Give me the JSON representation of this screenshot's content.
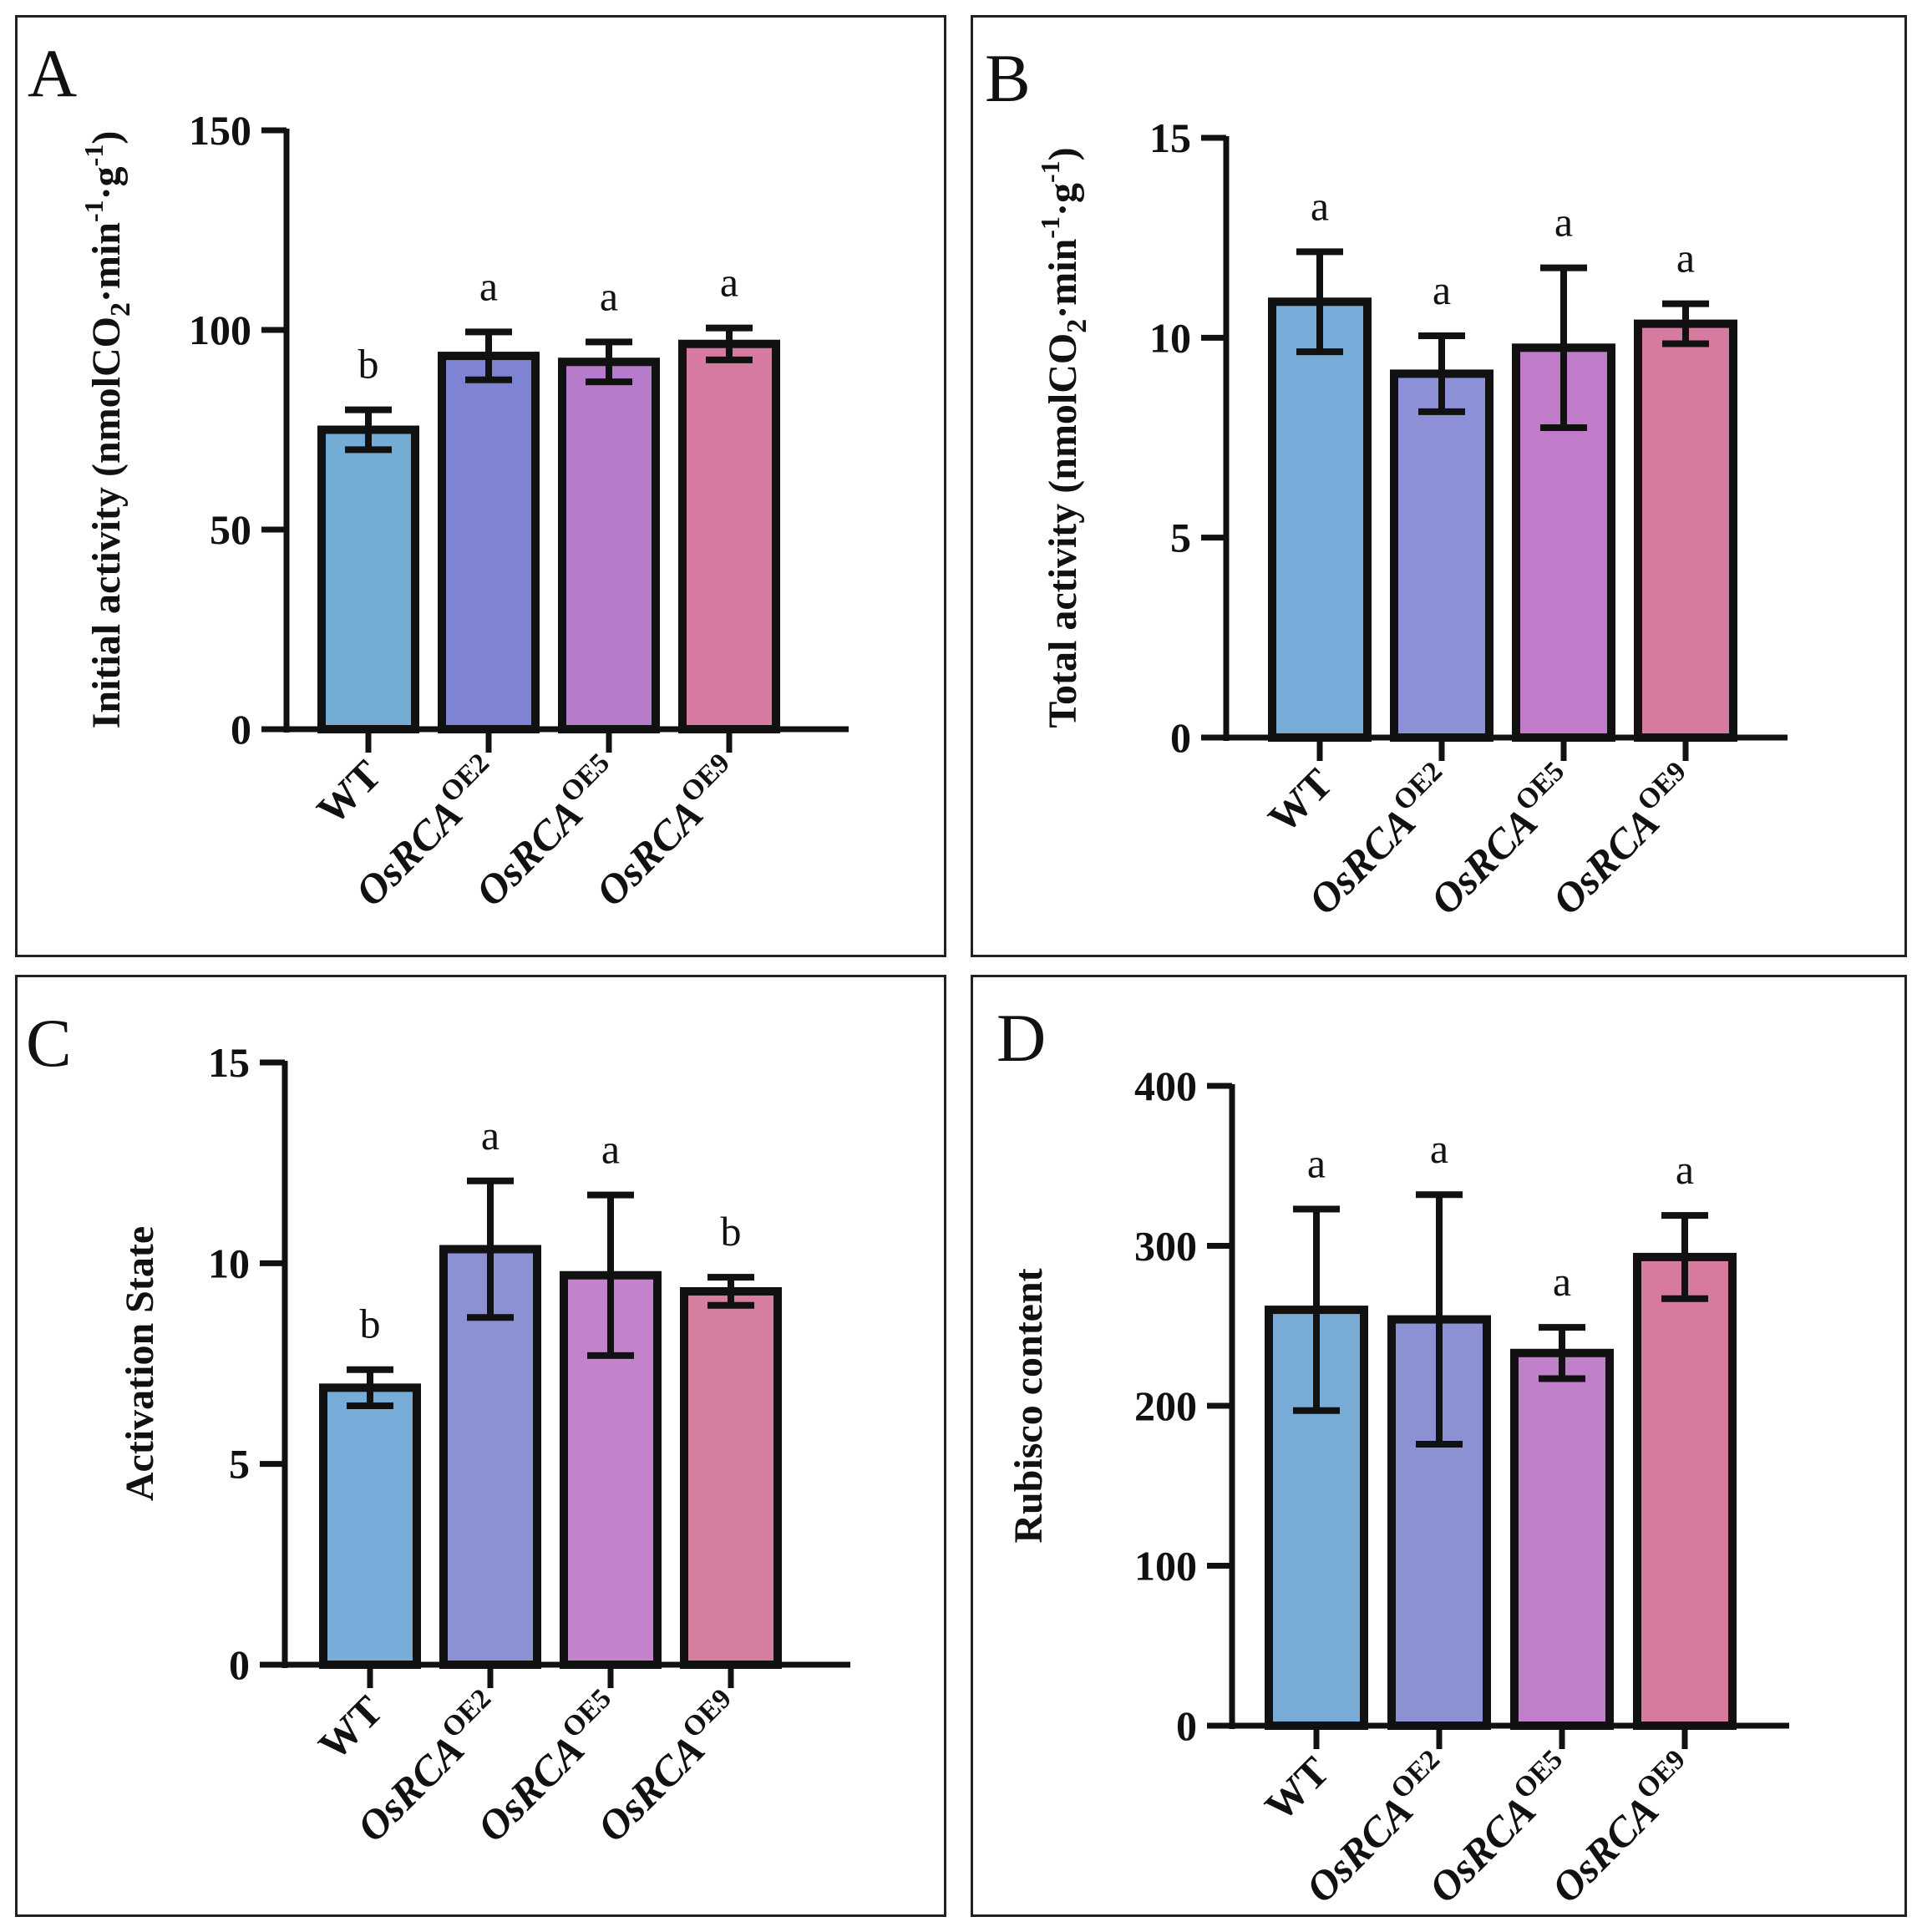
{
  "chart_data": [
    {
      "type": "bar",
      "panel_label": "A",
      "ylabel": {
        "pre": "Initial activity (nmolCO",
        "sub": "2",
        "mid": "·min",
        "sup1": "-1",
        "dot": "·g",
        "sup2": "-1",
        "post": ")"
      },
      "ylim": [
        0,
        150
      ],
      "ticks": [
        0,
        50,
        100,
        150
      ],
      "tick_labels": [
        "0",
        "50",
        "100",
        "150"
      ],
      "categories": [
        {
          "base": "WT",
          "italic": false,
          "sup": ""
        },
        {
          "base": "OsRCA",
          "italic": true,
          "sup": "OE2"
        },
        {
          "base": "OsRCA",
          "italic": true,
          "sup": "OE5"
        },
        {
          "base": "OsRCA",
          "italic": true,
          "sup": "OE9"
        }
      ],
      "values": [
        75,
        93.5,
        92,
        96.5
      ],
      "errors": [
        5,
        6,
        5,
        4
      ],
      "letters": [
        "b",
        "a",
        "a",
        "a"
      ]
    },
    {
      "type": "bar",
      "panel_label": "B",
      "ylabel": {
        "pre": "Total activity (nmolCO",
        "sub": "2",
        "mid": "·min",
        "sup1": "-1",
        "dot": "·g",
        "sup2": "-1",
        "post": ")"
      },
      "ylim": [
        0,
        15
      ],
      "ticks": [
        0,
        5,
        10,
        15
      ],
      "tick_labels": [
        "0",
        "5",
        "10",
        "15"
      ],
      "categories": [
        {
          "base": "WT",
          "italic": false,
          "sup": ""
        },
        {
          "base": "OsRCA",
          "italic": true,
          "sup": "OE2"
        },
        {
          "base": "OsRCA",
          "italic": true,
          "sup": "OE5"
        },
        {
          "base": "OsRCA",
          "italic": true,
          "sup": "OE9"
        }
      ],
      "values": [
        10.9,
        9.1,
        9.75,
        10.35
      ],
      "errors": [
        1.25,
        0.95,
        2.0,
        0.5
      ],
      "letters": [
        "a",
        "a",
        "a",
        "a"
      ]
    },
    {
      "type": "bar",
      "panel_label": "C",
      "ylabel": {
        "pre": "Activation State"
      },
      "ylim": [
        0,
        15
      ],
      "ticks": [
        0,
        5,
        10,
        15
      ],
      "tick_labels": [
        "0",
        "5",
        "10",
        "15"
      ],
      "categories": [
        {
          "base": "WT",
          "italic": false,
          "sup": ""
        },
        {
          "base": "OsRCA",
          "italic": true,
          "sup": "OE2"
        },
        {
          "base": "OsRCA",
          "italic": true,
          "sup": "OE5"
        },
        {
          "base": "OsRCA",
          "italic": true,
          "sup": "OE9"
        }
      ],
      "values": [
        6.9,
        10.35,
        9.7,
        9.3
      ],
      "errors": [
        0.45,
        1.7,
        2.0,
        0.35
      ],
      "letters": [
        "b",
        "a",
        "a",
        "b"
      ]
    },
    {
      "type": "bar",
      "panel_label": "D",
      "ylabel": {
        "pre": "Rubisco content"
      },
      "ylim": [
        0,
        400
      ],
      "ticks": [
        0,
        100,
        200,
        300,
        400
      ],
      "tick_labels": [
        "0",
        "100",
        "200",
        "300",
        "400"
      ],
      "categories": [
        {
          "base": "WT",
          "italic": false,
          "sup": ""
        },
        {
          "base": "OsRCA",
          "italic": true,
          "sup": "OE2"
        },
        {
          "base": "OsRCA",
          "italic": true,
          "sup": "OE5"
        },
        {
          "base": "OsRCA",
          "italic": true,
          "sup": "OE9"
        }
      ],
      "values": [
        260,
        254,
        233,
        293
      ],
      "errors": [
        63,
        78,
        16,
        26
      ],
      "letters": [
        "a",
        "a",
        "a",
        "a"
      ]
    }
  ],
  "colors": {
    "A": [
      "#74acd6",
      "#7e84d3",
      "#b77bcb",
      "#d57aa0"
    ],
    "B": [
      "#76acd7",
      "#8c91d7",
      "#c17cc9",
      "#d67b9f"
    ],
    "C": [
      "#76acd7",
      "#8c91d4",
      "#c283cb",
      "#d57ea0"
    ],
    "D": [
      "#78acd7",
      "#8c91d4",
      "#c080c9",
      "#d67a9e"
    ],
    "stroke": "#111111"
  }
}
